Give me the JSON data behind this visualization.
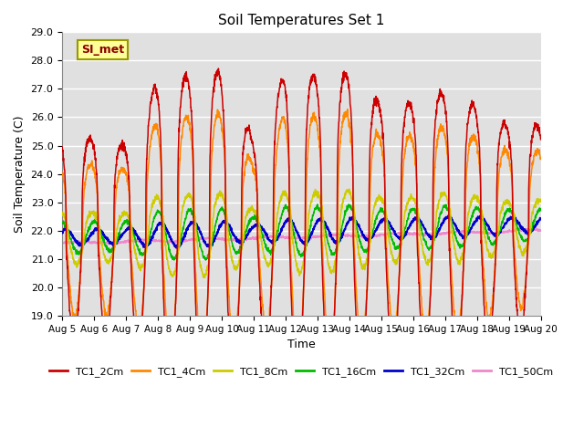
{
  "title": "Soil Temperatures Set 1",
  "xlabel": "Time",
  "ylabel": "Soil Temperature (C)",
  "ylim": [
    19.0,
    29.0
  ],
  "yticks": [
    19.0,
    20.0,
    21.0,
    22.0,
    23.0,
    24.0,
    25.0,
    26.0,
    27.0,
    28.0,
    29.0
  ],
  "xtick_labels": [
    "Aug 5",
    "Aug 6",
    "Aug 7",
    "Aug 8",
    "Aug 9",
    "Aug 10",
    "Aug 11",
    "Aug 12",
    "Aug 13",
    "Aug 14",
    "Aug 15",
    "Aug 16",
    "Aug 17",
    "Aug 18",
    "Aug 19",
    "Aug 20"
  ],
  "num_days": 15,
  "points_per_day": 144,
  "series_colors": {
    "TC1_2Cm": "#cc0000",
    "TC1_4Cm": "#ff8800",
    "TC1_8Cm": "#cccc00",
    "TC1_16Cm": "#00bb00",
    "TC1_32Cm": "#0000cc",
    "TC1_50Cm": "#ee88cc"
  },
  "background_color": "#e0e0e0",
  "fig_background": "#ffffff",
  "grid_color": "#ffffff",
  "legend_colors": [
    "#cc0000",
    "#ff8800",
    "#cccc00",
    "#00bb00",
    "#0000cc",
    "#ee88cc"
  ],
  "legend_labels": [
    "TC1_2Cm",
    "TC1_4Cm",
    "TC1_8Cm",
    "TC1_16Cm",
    "TC1_32Cm",
    "TC1_50Cm"
  ]
}
